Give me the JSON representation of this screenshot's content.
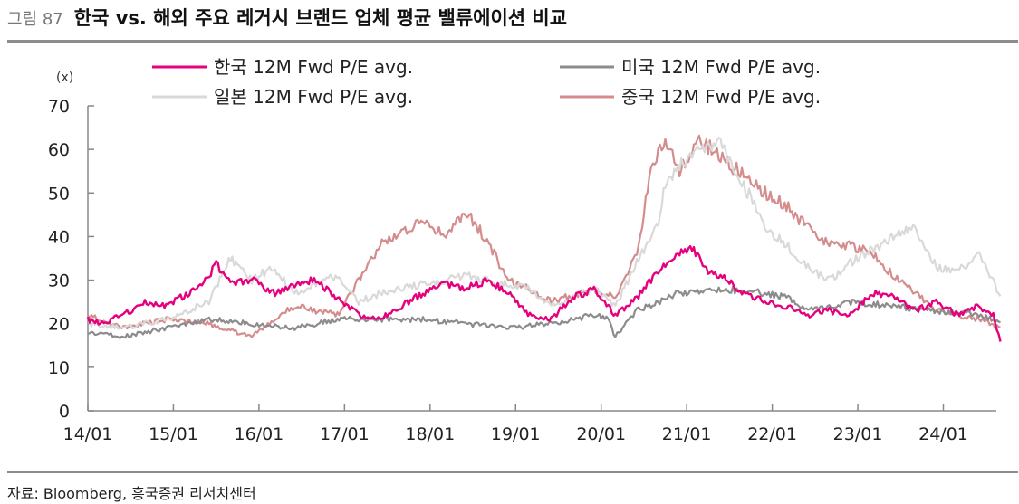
{
  "figure": {
    "label": "그림 87",
    "title": "한국 vs. 해외 주요 레거시 브랜드 업체 평균 밸류에이션 비교",
    "source": "자료: Bloomberg, 흥국증권 리서치센터"
  },
  "chart_data": {
    "type": "line",
    "title": "한국 vs. 해외 주요 레거시 브랜드 업체 평균 밸류에이션 비교",
    "ylabel": "(x)",
    "xlabel": "",
    "ylim": [
      0,
      70
    ],
    "yticks": [
      0,
      10,
      20,
      30,
      40,
      50,
      60,
      70
    ],
    "x_range": [
      "2014-01",
      "2024-09"
    ],
    "xticks": [
      "14/01",
      "15/01",
      "16/01",
      "17/01",
      "18/01",
      "19/01",
      "20/01",
      "21/01",
      "22/01",
      "23/01",
      "24/01"
    ],
    "legend_position": "top",
    "grid": false,
    "series": [
      {
        "name": "한국 12M Fwd P/E avg.",
        "color": "#e6007e",
        "x": [
          "2014-01",
          "2014-03",
          "2014-06",
          "2014-09",
          "2014-12",
          "2015-03",
          "2015-06",
          "2015-07",
          "2015-09",
          "2015-12",
          "2016-03",
          "2016-06",
          "2016-09",
          "2016-12",
          "2017-03",
          "2017-06",
          "2017-09",
          "2017-12",
          "2018-03",
          "2018-06",
          "2018-09",
          "2018-12",
          "2019-03",
          "2019-06",
          "2019-09",
          "2019-12",
          "2020-02",
          "2020-03",
          "2020-06",
          "2020-08",
          "2020-10",
          "2020-12",
          "2021-02",
          "2021-04",
          "2021-06",
          "2021-09",
          "2021-12",
          "2022-03",
          "2022-06",
          "2022-09",
          "2022-12",
          "2023-03",
          "2023-06",
          "2023-09",
          "2023-12",
          "2024-03",
          "2024-06",
          "2024-08",
          "2024-09"
        ],
        "values": [
          21,
          20,
          22,
          25,
          24,
          27,
          31,
          34,
          29,
          30,
          27,
          29,
          30,
          26,
          22,
          21,
          24,
          27,
          29,
          28,
          30,
          27,
          22,
          21,
          26,
          28,
          24,
          22,
          26,
          30,
          34,
          36,
          37,
          32,
          31,
          27,
          25,
          24,
          22,
          23,
          22,
          27,
          26,
          23,
          25,
          22,
          24,
          22,
          16
        ]
      },
      {
        "name": "미국 12M Fwd P/E avg.",
        "color": "#8c8c8c",
        "x": [
          "2014-01",
          "2014-06",
          "2014-12",
          "2015-06",
          "2015-12",
          "2016-06",
          "2016-12",
          "2017-06",
          "2017-12",
          "2018-06",
          "2018-12",
          "2019-06",
          "2019-12",
          "2020-02",
          "2020-03",
          "2020-06",
          "2020-12",
          "2021-06",
          "2021-12",
          "2022-03",
          "2022-06",
          "2022-12",
          "2023-06",
          "2023-12",
          "2024-06",
          "2024-09"
        ],
        "values": [
          18,
          17,
          19,
          21,
          20,
          19,
          21,
          21,
          21,
          20,
          19,
          20,
          22,
          21,
          17,
          23,
          27,
          28,
          27,
          26,
          23,
          25,
          24,
          23,
          22,
          20
        ]
      },
      {
        "name": "일본 12M Fwd P/E avg.",
        "color": "#d9d9d9",
        "x": [
          "2014-01",
          "2014-06",
          "2014-12",
          "2015-06",
          "2015-09",
          "2015-12",
          "2016-03",
          "2016-06",
          "2016-12",
          "2017-03",
          "2017-06",
          "2017-12",
          "2018-06",
          "2018-12",
          "2019-03",
          "2019-06",
          "2019-12",
          "2020-03",
          "2020-06",
          "2020-09",
          "2020-10",
          "2020-12",
          "2021-02",
          "2021-06",
          "2021-09",
          "2021-12",
          "2022-03",
          "2022-06",
          "2022-09",
          "2022-12",
          "2023-03",
          "2023-06",
          "2023-09",
          "2023-12",
          "2024-03",
          "2024-06",
          "2024-08",
          "2024-09"
        ],
        "values": [
          20,
          19,
          21,
          25,
          35,
          30,
          33,
          27,
          31,
          25,
          27,
          29,
          31,
          29,
          28,
          24,
          28,
          24,
          34,
          43,
          52,
          56,
          60,
          61,
          52,
          42,
          38,
          33,
          30,
          34,
          37,
          40,
          42,
          33,
          32,
          36,
          30,
          26
        ]
      },
      {
        "name": "중국 12M Fwd P/E avg.",
        "color": "#d48c8c",
        "x": [
          "2014-01",
          "2014-06",
          "2014-12",
          "2015-06",
          "2015-12",
          "2016-03",
          "2016-06",
          "2016-12",
          "2017-03",
          "2017-06",
          "2017-09",
          "2017-12",
          "2018-03",
          "2018-06",
          "2018-09",
          "2018-12",
          "2019-03",
          "2019-06",
          "2019-12",
          "2020-03",
          "2020-06",
          "2020-08",
          "2020-10",
          "2020-12",
          "2021-03",
          "2021-06",
          "2021-09",
          "2021-12",
          "2022-03",
          "2022-06",
          "2022-09",
          "2022-12",
          "2023-03",
          "2023-06",
          "2023-09",
          "2023-12",
          "2024-03",
          "2024-06",
          "2024-09"
        ],
        "values": [
          22,
          19,
          21,
          20,
          17,
          21,
          24,
          22,
          30,
          38,
          41,
          44,
          40,
          46,
          39,
          30,
          28,
          25,
          28,
          26,
          36,
          55,
          62,
          55,
          62,
          58,
          54,
          50,
          47,
          42,
          38,
          38,
          36,
          31,
          27,
          23,
          22,
          21,
          19
        ]
      }
    ]
  }
}
